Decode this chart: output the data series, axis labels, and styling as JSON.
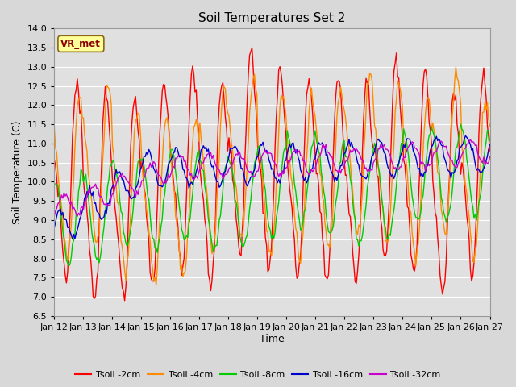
{
  "title": "Soil Temperatures Set 2",
  "xlabel": "Time",
  "ylabel": "Soil Temperature (C)",
  "ylim": [
    6.5,
    14.0
  ],
  "yticks": [
    6.5,
    7.0,
    7.5,
    8.0,
    8.5,
    9.0,
    9.5,
    10.0,
    10.5,
    11.0,
    11.5,
    12.0,
    12.5,
    13.0,
    13.5,
    14.0
  ],
  "xtick_labels": [
    "Jan 12",
    "Jan 13",
    "Jan 14",
    "Jan 15",
    "Jan 16",
    "Jan 17",
    "Jan 18",
    "Jan 19",
    "Jan 20",
    "Jan 21",
    "Jan 22",
    "Jan 23",
    "Jan 24",
    "Jan 25",
    "Jan 26",
    "Jan 27"
  ],
  "colors": {
    "Tsoil -2cm": "#ff0000",
    "Tsoil -4cm": "#ff8c00",
    "Tsoil -8cm": "#00cc00",
    "Tsoil -16cm": "#0000cc",
    "Tsoil -32cm": "#cc00cc"
  },
  "fig_width": 6.4,
  "fig_height": 4.8,
  "dpi": 100
}
